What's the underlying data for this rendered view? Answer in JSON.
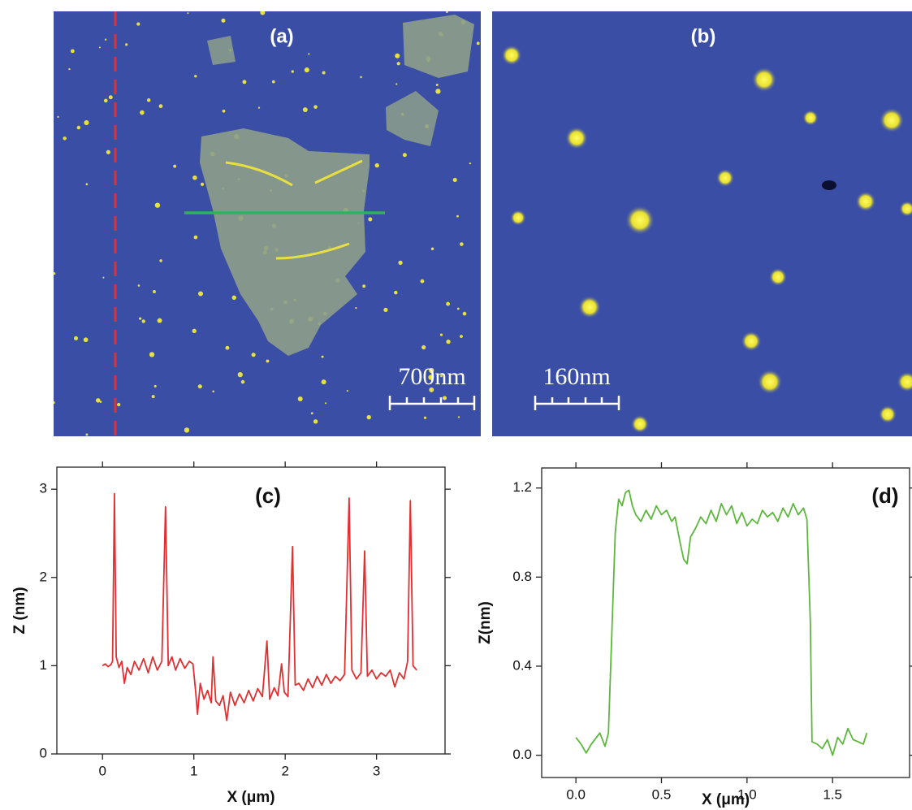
{
  "images": [
    {
      "label": "(a)",
      "scale_bar": "700nm"
    },
    {
      "label": "(b)",
      "scale_bar": "160nm"
    }
  ],
  "chart_data": [
    {
      "type": "line",
      "title": "(c)",
      "x_label": "X (μm)",
      "y_label": "Z (nm)",
      "color": "#e03030",
      "xlim": [
        -0.5,
        3.75
      ],
      "ylim": [
        0,
        3.25
      ],
      "xticks": [
        0,
        1,
        2,
        3
      ],
      "yticks": [
        0,
        1,
        2,
        3
      ],
      "x": [
        0.0,
        0.03,
        0.06,
        0.09,
        0.11,
        0.13,
        0.15,
        0.18,
        0.21,
        0.24,
        0.27,
        0.31,
        0.35,
        0.4,
        0.45,
        0.5,
        0.55,
        0.6,
        0.65,
        0.69,
        0.72,
        0.76,
        0.8,
        0.85,
        0.9,
        0.95,
        0.99,
        1.02,
        1.04,
        1.07,
        1.11,
        1.15,
        1.19,
        1.21,
        1.24,
        1.28,
        1.32,
        1.36,
        1.4,
        1.45,
        1.5,
        1.55,
        1.6,
        1.65,
        1.7,
        1.75,
        1.8,
        1.83,
        1.88,
        1.92,
        1.96,
        1.99,
        2.03,
        2.08,
        2.11,
        2.15,
        2.2,
        2.25,
        2.3,
        2.35,
        2.4,
        2.45,
        2.5,
        2.55,
        2.6,
        2.65,
        2.7,
        2.73,
        2.78,
        2.83,
        2.87,
        2.9,
        2.95,
        3.0,
        3.05,
        3.1,
        3.15,
        3.2,
        3.25,
        3.3,
        3.34,
        3.37,
        3.4,
        3.44
      ],
      "values": [
        1.0,
        1.02,
        0.99,
        1.01,
        1.05,
        2.95,
        1.1,
        0.98,
        1.05,
        0.8,
        0.98,
        0.9,
        1.05,
        0.95,
        1.08,
        0.92,
        1.1,
        0.95,
        1.05,
        2.8,
        1.0,
        1.1,
        0.95,
        1.08,
        0.97,
        1.05,
        1.02,
        0.7,
        0.45,
        0.8,
        0.62,
        0.72,
        0.58,
        1.1,
        0.6,
        0.55,
        0.66,
        0.38,
        0.7,
        0.55,
        0.68,
        0.58,
        0.72,
        0.6,
        0.74,
        0.65,
        1.28,
        0.62,
        0.75,
        0.66,
        1.02,
        0.7,
        0.65,
        2.35,
        0.78,
        0.8,
        0.72,
        0.85,
        0.75,
        0.88,
        0.78,
        0.9,
        0.8,
        0.88,
        0.83,
        0.9,
        2.9,
        0.95,
        0.85,
        0.92,
        2.3,
        0.88,
        0.95,
        0.85,
        0.92,
        0.88,
        0.95,
        0.76,
        0.92,
        0.85,
        1.05,
        2.87,
        1.0,
        0.95
      ]
    },
    {
      "type": "line",
      "title": "(d)",
      "x_label": "X (μm)",
      "y_label": "Z(nm)",
      "color": "#5cb83c",
      "xlim": [
        -0.2,
        1.95
      ],
      "ylim": [
        -0.1,
        1.29
      ],
      "xticks": [
        {
          "value": 0,
          "label": "0.0"
        },
        0.5,
        {
          "value": 1,
          "label": "1.0"
        },
        1.5
      ],
      "yticks": [
        {
          "value": 0,
          "label": "0.0"
        },
        0.4,
        0.8,
        1.2
      ],
      "x": [
        0.0,
        0.03,
        0.06,
        0.09,
        0.12,
        0.14,
        0.17,
        0.19,
        0.21,
        0.23,
        0.25,
        0.27,
        0.29,
        0.31,
        0.33,
        0.35,
        0.38,
        0.41,
        0.44,
        0.47,
        0.5,
        0.53,
        0.56,
        0.58,
        0.61,
        0.63,
        0.65,
        0.67,
        0.7,
        0.73,
        0.76,
        0.79,
        0.82,
        0.85,
        0.88,
        0.91,
        0.94,
        0.97,
        1.0,
        1.03,
        1.06,
        1.09,
        1.12,
        1.15,
        1.18,
        1.21,
        1.24,
        1.27,
        1.3,
        1.33,
        1.35,
        1.37,
        1.38,
        1.41,
        1.44,
        1.47,
        1.5,
        1.53,
        1.56,
        1.59,
        1.62,
        1.65,
        1.68,
        1.7
      ],
      "values": [
        0.08,
        0.05,
        0.01,
        0.05,
        0.08,
        0.1,
        0.04,
        0.1,
        0.55,
        1.0,
        1.15,
        1.12,
        1.18,
        1.19,
        1.12,
        1.08,
        1.05,
        1.1,
        1.06,
        1.12,
        1.08,
        1.1,
        1.05,
        1.07,
        0.95,
        0.88,
        0.86,
        0.98,
        1.02,
        1.07,
        1.04,
        1.1,
        1.05,
        1.13,
        1.08,
        1.12,
        1.04,
        1.09,
        1.03,
        1.06,
        1.04,
        1.1,
        1.07,
        1.09,
        1.05,
        1.11,
        1.07,
        1.13,
        1.08,
        1.11,
        1.06,
        0.6,
        0.06,
        0.05,
        0.03,
        0.07,
        0.0,
        0.08,
        0.05,
        0.12,
        0.07,
        0.06,
        0.05,
        0.1
      ]
    }
  ]
}
